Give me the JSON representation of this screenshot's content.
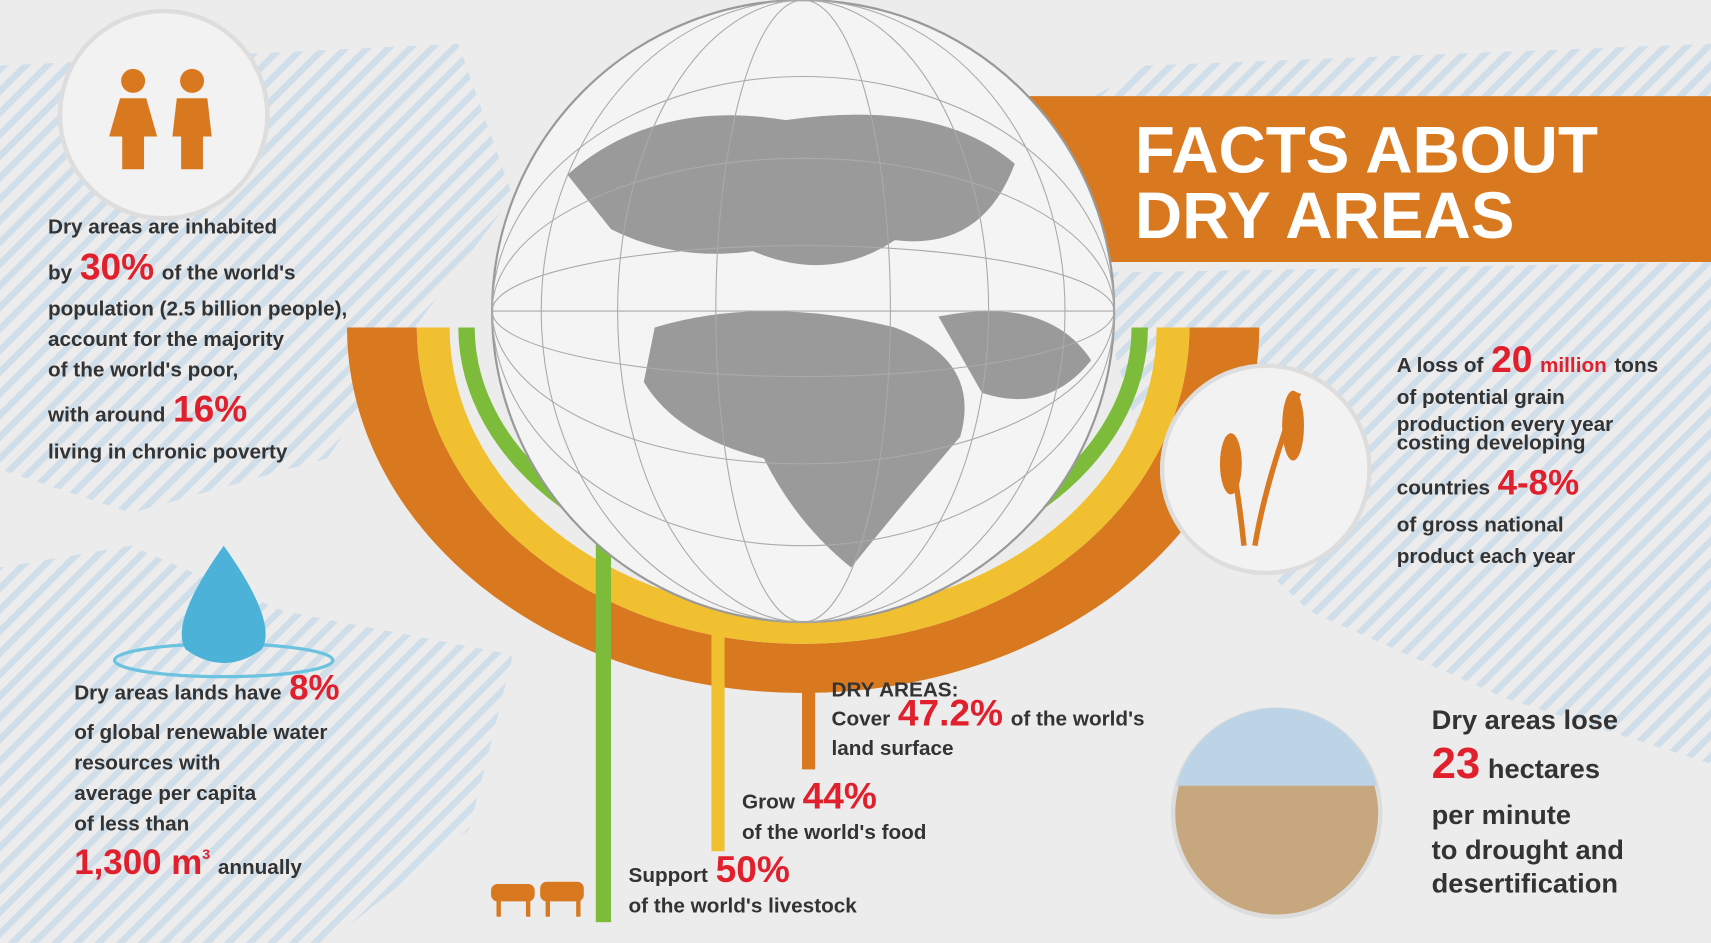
{
  "title": {
    "line1": "FACTS ABOUT",
    "line2": "DRY AREAS"
  },
  "population": {
    "lines": [
      [
        "Dry areas are inhabited"
      ],
      [
        "by",
        "30%",
        "of the world's"
      ],
      [
        "population (2.5 billion people),"
      ],
      [
        "account for the majority"
      ],
      [
        "of the world's poor,"
      ],
      [
        "with around",
        "16%"
      ],
      [
        "living in chronic poverty"
      ]
    ]
  },
  "water": {
    "lines": [
      [
        "Dry areas lands have",
        "8%"
      ],
      [
        "of global renewable water"
      ],
      [
        "resources with"
      ],
      [
        "average per capita"
      ],
      [
        "of less than"
      ],
      [
        "1,300 m",
        "3",
        "annually"
      ]
    ]
  },
  "grain": {
    "lines": [
      [
        "A loss of",
        "20",
        "million",
        "tons"
      ],
      [
        "of potential grain"
      ],
      [
        "production every year"
      ],
      [
        "costing developing"
      ],
      [
        "countries",
        "4-8%"
      ],
      [
        "of gross national"
      ],
      [
        "product each year"
      ]
    ]
  },
  "land": {
    "lines": [
      [
        "Dry areas lose"
      ],
      [
        "23",
        "hectares"
      ],
      [
        "per minute"
      ],
      [
        "to drought and"
      ],
      [
        "desertification"
      ]
    ]
  },
  "dry_areas": {
    "heading": "DRY AREAS:",
    "lines": [
      [
        "Cover",
        "47.2%",
        "of the world's"
      ],
      [
        "land surface"
      ]
    ]
  },
  "food": {
    "lines": [
      [
        "Grow",
        "44%"
      ],
      [
        "of the world's food"
      ]
    ]
  },
  "livestock": {
    "lines": [
      [
        "Support",
        "50%"
      ],
      [
        "of the world's livestock"
      ]
    ]
  }
}
